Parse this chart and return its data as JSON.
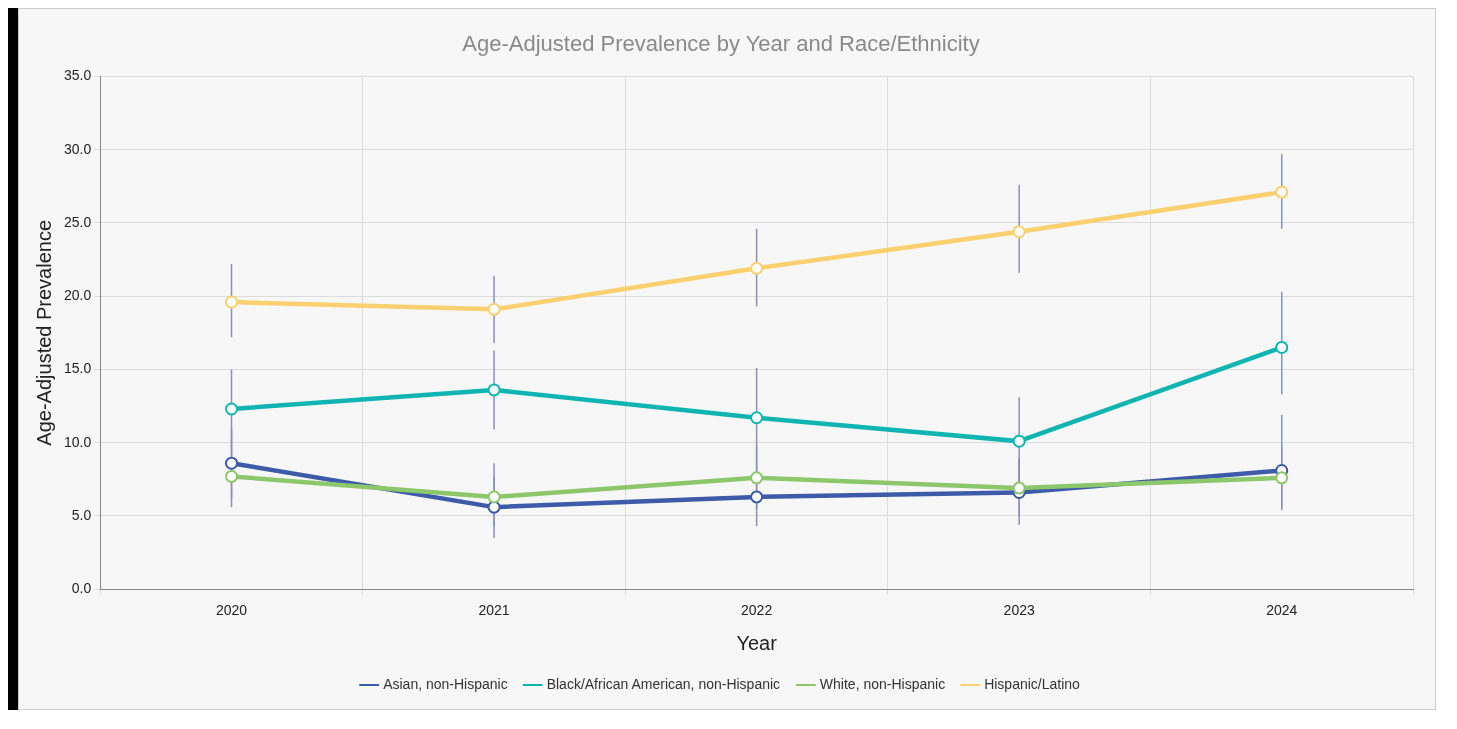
{
  "chart_data": {
    "type": "line",
    "title": "Age-Adjusted Prevalence by Year and Race/Ethnicity",
    "xlabel": "Year",
    "ylabel": "Age-Adjusted Prevalence",
    "categories": [
      "2020",
      "2021",
      "2022",
      "2023",
      "2024"
    ],
    "series": [
      {
        "name": "Asian, non-Hispanic",
        "color": "#3d5ba9",
        "values": [
          8.6,
          5.6,
          6.3,
          6.6,
          8.1
        ],
        "errors": [
          [
            6.2,
            11.0
          ],
          [
            3.5,
            7.7
          ],
          [
            4.3,
            8.4
          ],
          [
            4.4,
            8.8
          ],
          [
            5.4,
            11.9
          ]
        ]
      },
      {
        "name": "Black/African American, non-Hispanic",
        "color": "#10b5b2",
        "values": [
          12.3,
          13.6,
          11.7,
          10.1,
          16.5
        ],
        "errors": [
          [
            9.7,
            15.0
          ],
          [
            10.9,
            16.3
          ],
          [
            8.4,
            15.1
          ],
          [
            7.1,
            13.1
          ],
          [
            13.3,
            20.3
          ]
        ]
      },
      {
        "name": "White, non-Hispanic",
        "color": "#8dc76b",
        "values": [
          7.7,
          6.3,
          7.6,
          6.9,
          7.6
        ],
        "errors": [
          [
            5.6,
            9.8
          ],
          [
            4.3,
            8.6
          ],
          [
            5.5,
            9.7
          ],
          [
            5.0,
            8.9
          ],
          [
            5.6,
            9.7
          ]
        ]
      },
      {
        "name": "Hispanic/Latino",
        "color": "#fbd06e",
        "values": [
          19.6,
          19.1,
          21.9,
          24.4,
          27.1
        ],
        "errors": [
          [
            17.2,
            22.2
          ],
          [
            16.8,
            21.4
          ],
          [
            19.3,
            24.6
          ],
          [
            21.6,
            27.6
          ],
          [
            24.6,
            29.7
          ]
        ]
      }
    ],
    "ylim": [
      0,
      35
    ],
    "yticks": [
      {
        "value": 0,
        "label": "0.0"
      },
      {
        "value": 5,
        "label": "5.0"
      },
      {
        "value": 10,
        "label": "10.0"
      },
      {
        "value": 15,
        "label": "15.0"
      },
      {
        "value": 20,
        "label": "20.0"
      },
      {
        "value": 25,
        "label": "25.0"
      },
      {
        "value": 30,
        "label": "30.0"
      },
      {
        "value": 35,
        "label": "35.0"
      }
    ],
    "grid": true,
    "legend": "bottom",
    "marker": "circle",
    "line_style": "solid"
  }
}
